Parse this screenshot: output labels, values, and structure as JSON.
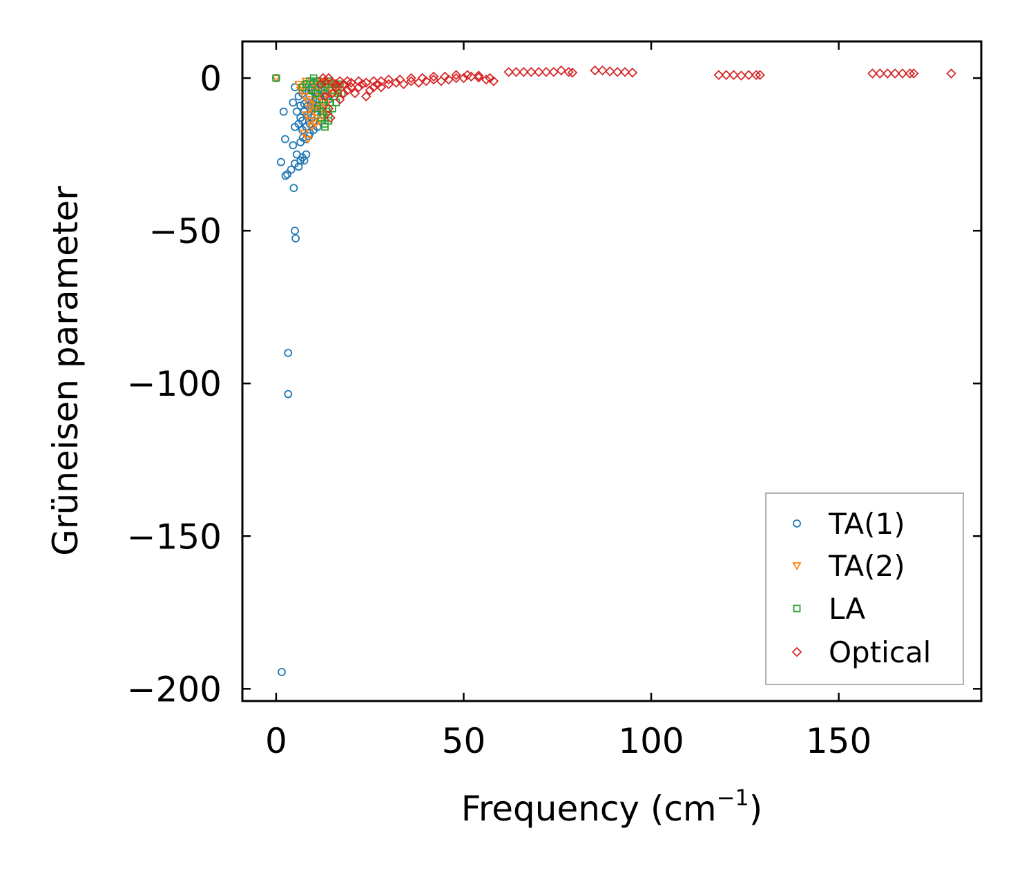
{
  "chart_data": {
    "type": "scatter",
    "title": "",
    "xlabel": "Frequency (cm",
    "xlabel_sup": "−1",
    "xlabel_close": ")",
    "ylabel": "Grüneisen parameter",
    "xlim": [
      -9,
      188
    ],
    "ylim": [
      -204,
      12
    ],
    "xticks": [
      0,
      50,
      100,
      150
    ],
    "xtick_labels": [
      "0",
      "50",
      "100",
      "150"
    ],
    "yticks": [
      0,
      -50,
      -100,
      -150,
      -200
    ],
    "ytick_labels": [
      "0",
      "−50",
      "−100",
      "−150",
      "−200"
    ],
    "grid": false,
    "legend_position": "lower-right",
    "series": [
      {
        "name": "TA(1)",
        "marker": "circle",
        "color": "#1f77b4",
        "points": [
          [
            0,
            0
          ],
          [
            1.5,
            -194.5
          ],
          [
            3.2,
            -90
          ],
          [
            3.2,
            -103.5
          ],
          [
            5,
            -50
          ],
          [
            5.2,
            -52.5
          ],
          [
            1.3,
            -27.5
          ],
          [
            2.5,
            -32
          ],
          [
            3,
            -31.5
          ],
          [
            4.7,
            -36
          ],
          [
            2,
            -11
          ],
          [
            2.4,
            -20
          ],
          [
            4,
            -30
          ],
          [
            5,
            -28
          ],
          [
            5.5,
            -25
          ],
          [
            6,
            -29
          ],
          [
            6.5,
            -27
          ],
          [
            7,
            -26
          ],
          [
            7.5,
            -27
          ],
          [
            8,
            -25
          ],
          [
            4.5,
            -22
          ],
          [
            6.5,
            -21
          ],
          [
            7.2,
            -19.5
          ],
          [
            8,
            -20
          ],
          [
            8.7,
            -19
          ],
          [
            5,
            -16
          ],
          [
            6,
            -15
          ],
          [
            7,
            -17
          ],
          [
            8,
            -16
          ],
          [
            9,
            -15
          ],
          [
            10,
            -14
          ],
          [
            11,
            -12
          ],
          [
            12,
            -10
          ],
          [
            5.5,
            -11
          ],
          [
            6.5,
            -9
          ],
          [
            7.5,
            -8.5
          ],
          [
            8.5,
            -9
          ],
          [
            9.5,
            -8
          ],
          [
            10.5,
            -7
          ],
          [
            11.5,
            -6
          ],
          [
            6,
            -6
          ],
          [
            7,
            -5
          ],
          [
            8,
            -4
          ],
          [
            9,
            -3.5
          ],
          [
            10,
            -4.5
          ],
          [
            11,
            -5
          ],
          [
            12,
            -3
          ],
          [
            13,
            -5
          ],
          [
            14,
            -7
          ],
          [
            6.5,
            -13
          ],
          [
            7.5,
            -11
          ],
          [
            8.5,
            -12
          ],
          [
            9.5,
            -10
          ],
          [
            10.5,
            -11
          ],
          [
            11.5,
            -9
          ],
          [
            12.5,
            -8
          ],
          [
            13.5,
            -6
          ],
          [
            9,
            -18
          ],
          [
            10,
            -17
          ],
          [
            11,
            -16
          ],
          [
            12,
            -14
          ],
          [
            4.5,
            -8
          ],
          [
            5,
            -3
          ],
          [
            8,
            -2
          ],
          [
            10,
            -1.5
          ],
          [
            9,
            -6
          ],
          [
            11.5,
            -2
          ],
          [
            12.5,
            -12
          ],
          [
            7,
            -14
          ],
          [
            9.5,
            -13
          ]
        ]
      },
      {
        "name": "TA(2)",
        "marker": "triangle-down",
        "color": "#ff7f0e",
        "points": [
          [
            0,
            0
          ],
          [
            6,
            -2
          ],
          [
            7,
            -3
          ],
          [
            8,
            -1
          ],
          [
            9,
            -4
          ],
          [
            10,
            -2
          ],
          [
            11,
            -3
          ],
          [
            12,
            -1
          ],
          [
            13,
            -2
          ],
          [
            14,
            -3
          ],
          [
            15,
            -1.5
          ],
          [
            16,
            -2.5
          ],
          [
            7.5,
            -6
          ],
          [
            8.5,
            -8
          ],
          [
            9.5,
            -7
          ],
          [
            10.5,
            -9
          ],
          [
            11.5,
            -6
          ],
          [
            12.5,
            -8
          ],
          [
            13.5,
            -5
          ],
          [
            14.5,
            -4
          ],
          [
            15.5,
            -3
          ],
          [
            8,
            -12
          ],
          [
            9,
            -14
          ],
          [
            10,
            -11
          ],
          [
            11,
            -13
          ],
          [
            12,
            -10
          ],
          [
            13,
            -9
          ],
          [
            7.5,
            -18
          ],
          [
            8.5,
            -20
          ],
          [
            9.5,
            -16
          ],
          [
            10.5,
            -15
          ],
          [
            11.5,
            -14
          ],
          [
            14,
            -7
          ],
          [
            15,
            -5
          ],
          [
            16,
            -4
          ],
          [
            17,
            -3
          ],
          [
            6.5,
            -4
          ],
          [
            9,
            -10
          ],
          [
            12,
            -5
          ],
          [
            13,
            -12
          ]
        ]
      },
      {
        "name": "LA",
        "marker": "square",
        "color": "#2ca02c",
        "points": [
          [
            0,
            0
          ],
          [
            8,
            -2
          ],
          [
            9,
            -1
          ],
          [
            10,
            0
          ],
          [
            11,
            -1
          ],
          [
            12,
            -2
          ],
          [
            13,
            -3
          ],
          [
            14,
            -1
          ],
          [
            15,
            -2
          ],
          [
            16,
            -3
          ],
          [
            17,
            -2
          ],
          [
            10.5,
            -5
          ],
          [
            11.5,
            -7
          ],
          [
            12.5,
            -9
          ],
          [
            13.5,
            -11
          ],
          [
            14.5,
            -8
          ],
          [
            15.5,
            -6
          ],
          [
            16.5,
            -5
          ],
          [
            12,
            -13
          ],
          [
            13,
            -15
          ],
          [
            14,
            -12
          ],
          [
            15,
            -10
          ],
          [
            11,
            -10
          ],
          [
            9.5,
            -4
          ],
          [
            16,
            -8
          ],
          [
            13,
            -16
          ],
          [
            14,
            -14
          ],
          [
            7,
            -3
          ],
          [
            12.5,
            -4
          ],
          [
            17.5,
            -5
          ]
        ]
      },
      {
        "name": "Optical",
        "marker": "diamond",
        "color": "#d62728",
        "points": [
          [
            12,
            -2
          ],
          [
            13,
            -6
          ],
          [
            14,
            -10
          ],
          [
            14.5,
            -13
          ],
          [
            15,
            -5
          ],
          [
            16,
            -3
          ],
          [
            17,
            -7
          ],
          [
            18,
            -5
          ],
          [
            19,
            -4
          ],
          [
            20,
            -3
          ],
          [
            21,
            -5
          ],
          [
            22,
            -3
          ],
          [
            23,
            -2
          ],
          [
            24,
            -6
          ],
          [
            25,
            -4
          ],
          [
            26,
            -3
          ],
          [
            27,
            -2
          ],
          [
            28,
            -3
          ],
          [
            30,
            -2
          ],
          [
            32,
            -1.5
          ],
          [
            34,
            -2
          ],
          [
            36,
            -1
          ],
          [
            38,
            -1.5
          ],
          [
            40,
            -1
          ],
          [
            42,
            -0.5
          ],
          [
            44,
            -1
          ],
          [
            46,
            -0.5
          ],
          [
            48,
            0
          ],
          [
            50,
            0
          ],
          [
            52,
            0.5
          ],
          [
            54,
            0.2
          ],
          [
            56,
            -0.5
          ],
          [
            58,
            -1
          ],
          [
            12.5,
            0
          ],
          [
            13,
            -1
          ],
          [
            14,
            0
          ],
          [
            15,
            -1.5
          ],
          [
            16,
            -2
          ],
          [
            17,
            -1
          ],
          [
            18,
            -2
          ],
          [
            19,
            -1
          ],
          [
            20,
            -1.5
          ],
          [
            22,
            -1
          ],
          [
            24,
            -1.5
          ],
          [
            26,
            -1
          ],
          [
            28,
            -1
          ],
          [
            30,
            -0.5
          ],
          [
            33,
            -0.5
          ],
          [
            36,
            0
          ],
          [
            39,
            0
          ],
          [
            42,
            0.5
          ],
          [
            45,
            0.5
          ],
          [
            48,
            1
          ],
          [
            51,
            1
          ],
          [
            54,
            0.8
          ],
          [
            57,
            0
          ],
          [
            62,
            2
          ],
          [
            64,
            2
          ],
          [
            66,
            2
          ],
          [
            68,
            2
          ],
          [
            70,
            2
          ],
          [
            72,
            2
          ],
          [
            74,
            2
          ],
          [
            76,
            2.5
          ],
          [
            78,
            2
          ],
          [
            79,
            1.8
          ],
          [
            85,
            2.5
          ],
          [
            87,
            2.5
          ],
          [
            89,
            2.2
          ],
          [
            91,
            2
          ],
          [
            93,
            2
          ],
          [
            95,
            1.8
          ],
          [
            118,
            1
          ],
          [
            120,
            1
          ],
          [
            122,
            1
          ],
          [
            124,
            0.8
          ],
          [
            126,
            1
          ],
          [
            128,
            1
          ],
          [
            129,
            1
          ],
          [
            159,
            1.5
          ],
          [
            161,
            1.5
          ],
          [
            163,
            1.5
          ],
          [
            165,
            1.5
          ],
          [
            167,
            1.5
          ],
          [
            169,
            1.5
          ],
          [
            170,
            1.5
          ],
          [
            180,
            1.5
          ]
        ]
      }
    ]
  }
}
